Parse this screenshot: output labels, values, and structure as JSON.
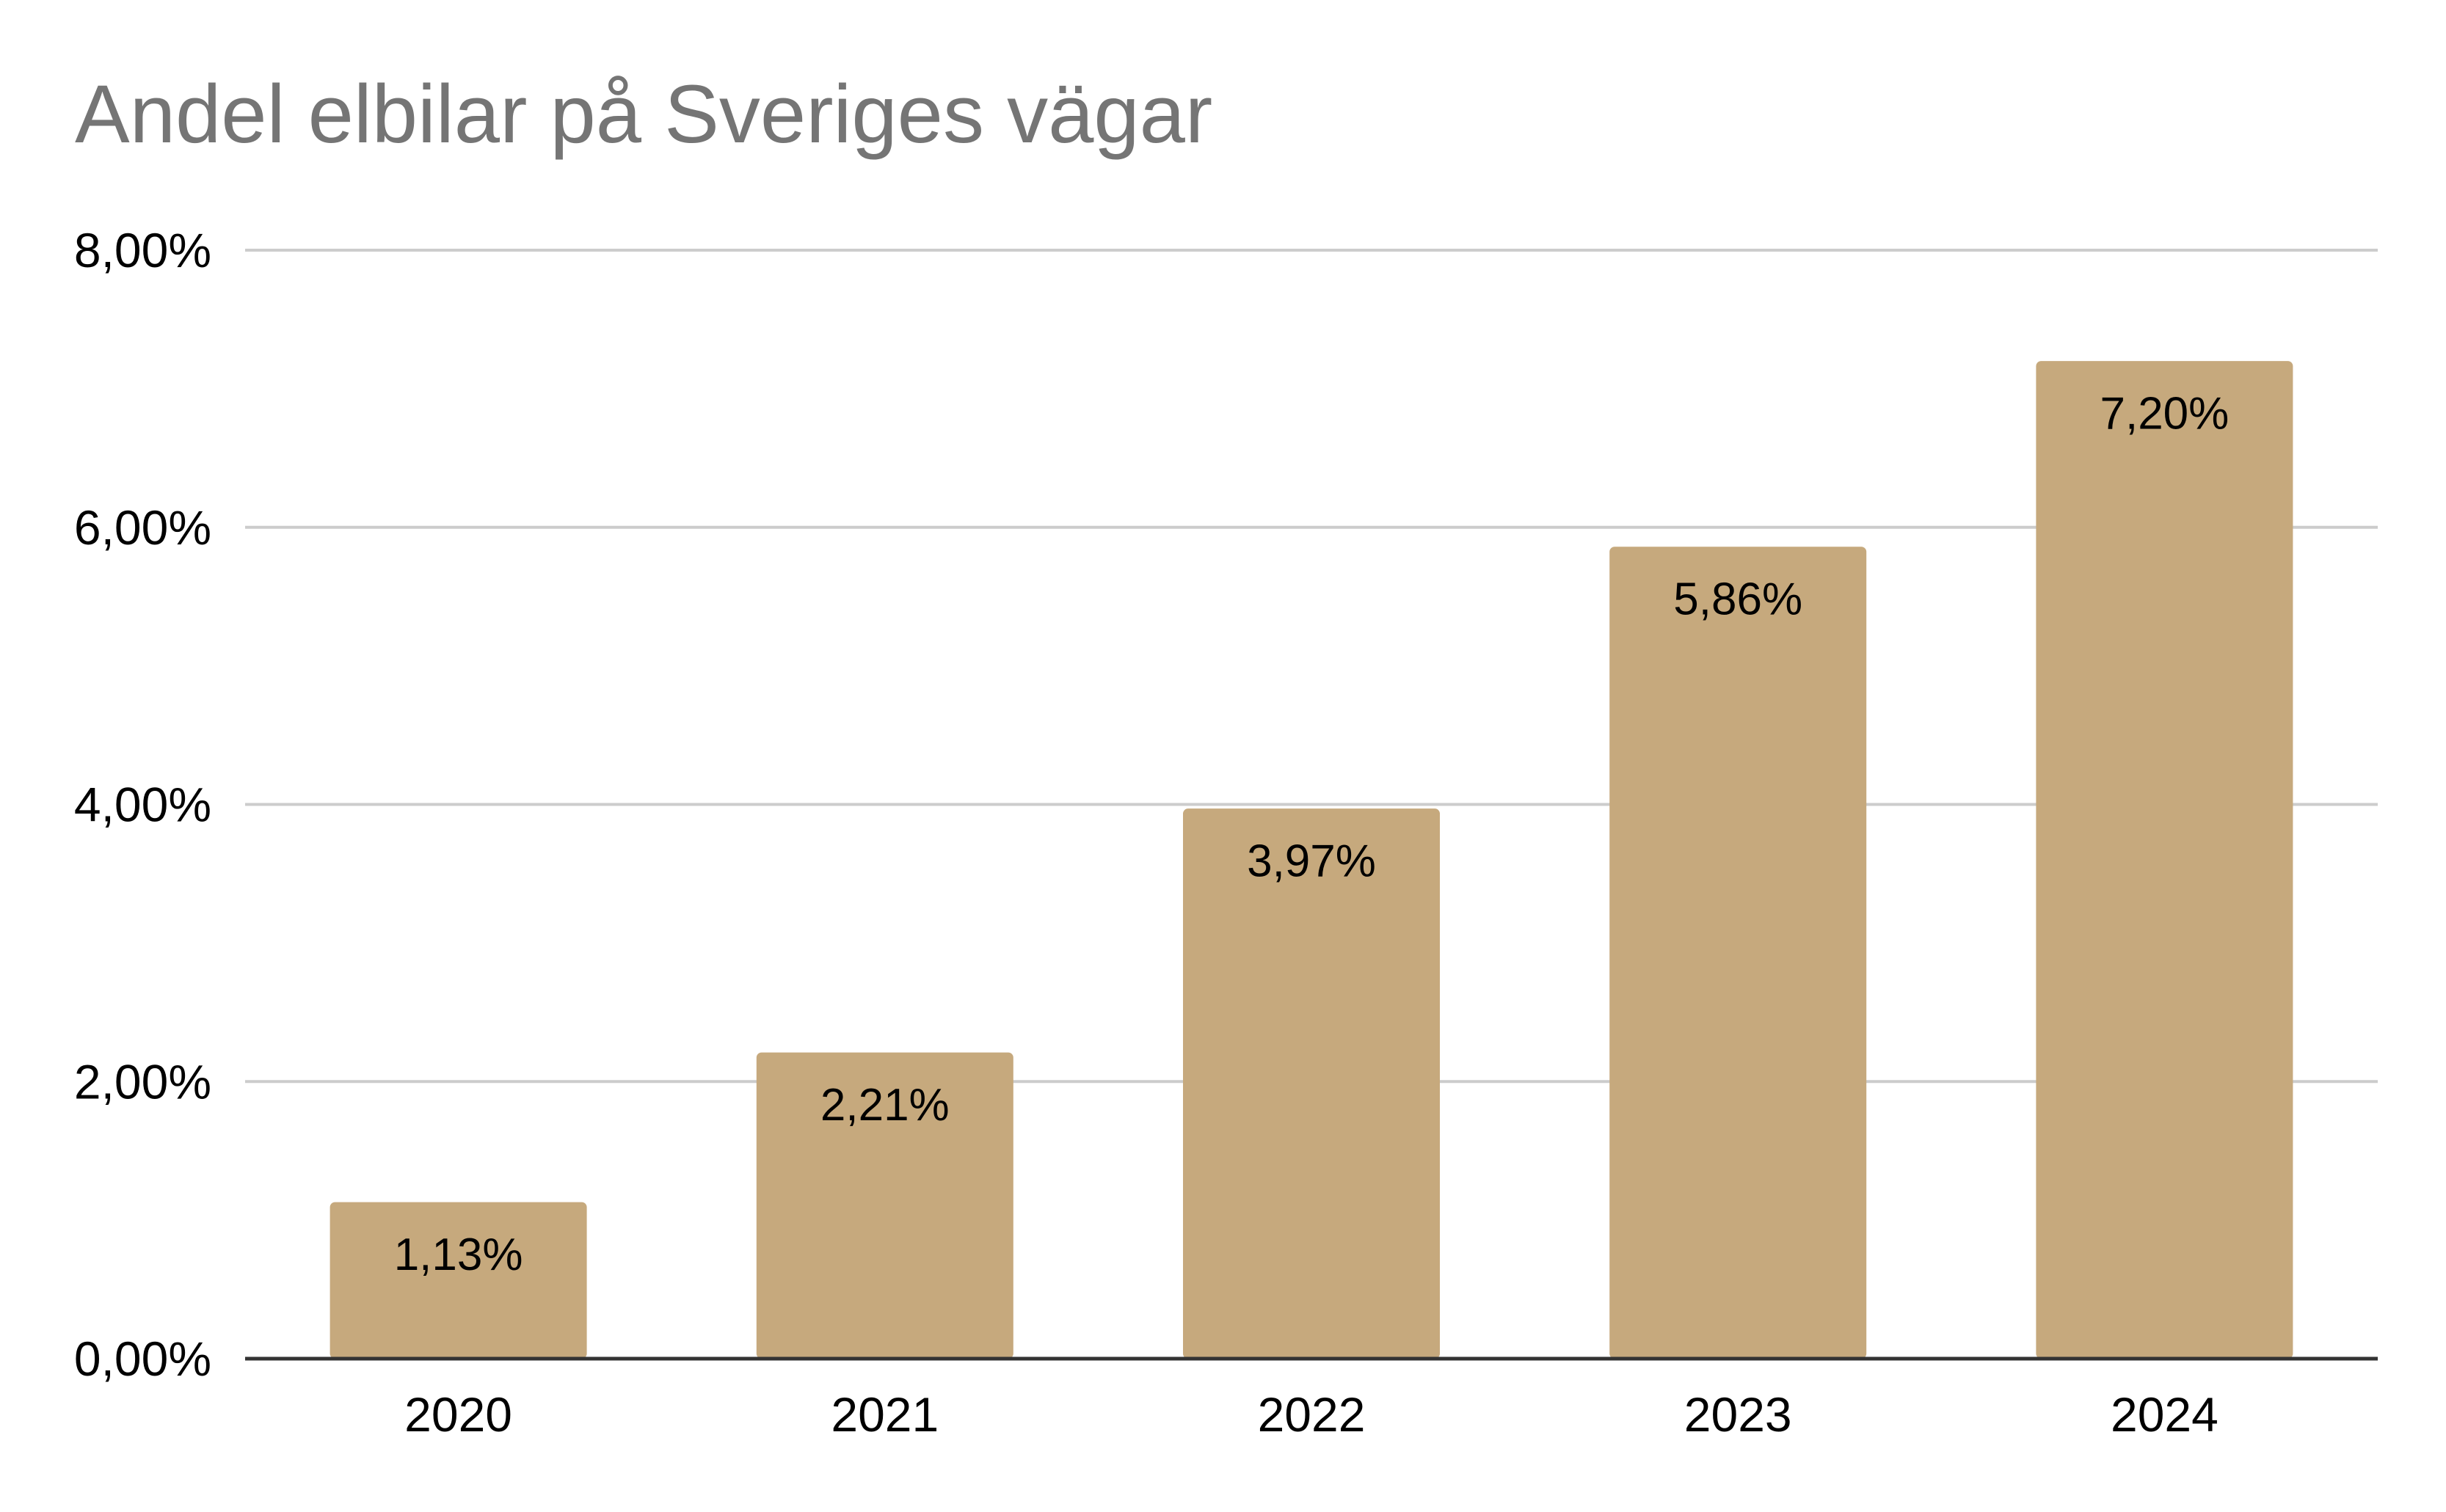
{
  "chart_data": {
    "type": "bar",
    "title": "Andel elbilar på Sveriges vägar",
    "xlabel": "",
    "ylabel": "",
    "categories": [
      "2020",
      "2021",
      "2022",
      "2023",
      "2024"
    ],
    "values": [
      1.13,
      2.21,
      3.97,
      5.86,
      7.2
    ],
    "data_labels": [
      "1,13%",
      "2,21%",
      "3,97%",
      "5,86%",
      "7,20%"
    ],
    "ylim": [
      0,
      8
    ],
    "y_ticks": [
      0,
      2,
      4,
      6,
      8
    ],
    "y_tick_labels": [
      "0,00%",
      "2,00%",
      "4,00%",
      "6,00%",
      "8,00%"
    ],
    "grid": true,
    "legend": "none",
    "colors": {
      "bar": "#c6a97d",
      "grid": "#cccccc",
      "axis": "#333333",
      "title": "#757575"
    }
  }
}
